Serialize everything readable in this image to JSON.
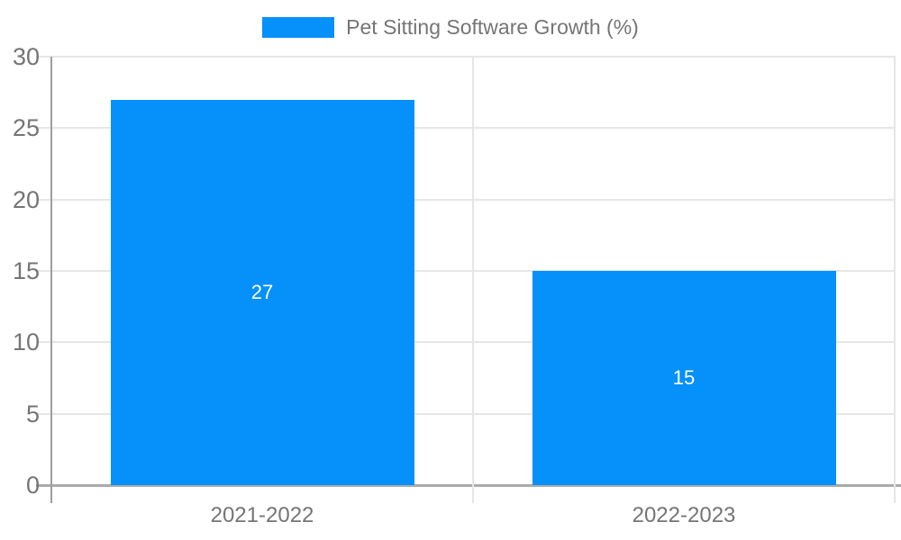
{
  "chart_data": {
    "type": "bar",
    "title": "Pet Sitting Software Growth (%)",
    "categories": [
      "2021-2022",
      "2022-2023"
    ],
    "values": [
      27,
      15
    ],
    "series": [
      {
        "name": "Pet Sitting Software Growth (%)",
        "values": [
          27,
          15
        ]
      }
    ],
    "xlabel": "",
    "ylabel": "",
    "ylim": [
      0,
      30
    ],
    "yticks": [
      0,
      5,
      10,
      15,
      20,
      25,
      30
    ],
    "grid": true,
    "legend_position": "top-center",
    "value_labels_shown": true
  },
  "legend": {
    "label": "Pet Sitting Software Growth (%)"
  },
  "colors": {
    "bar": "#0590FA",
    "axis_text": "#757575",
    "axis_line": "#9E9E9E",
    "baseline": "#ABABAB",
    "gridline": "#E6E6E6",
    "value_label": "#FFFFFF",
    "background": "#FFFFFF"
  }
}
